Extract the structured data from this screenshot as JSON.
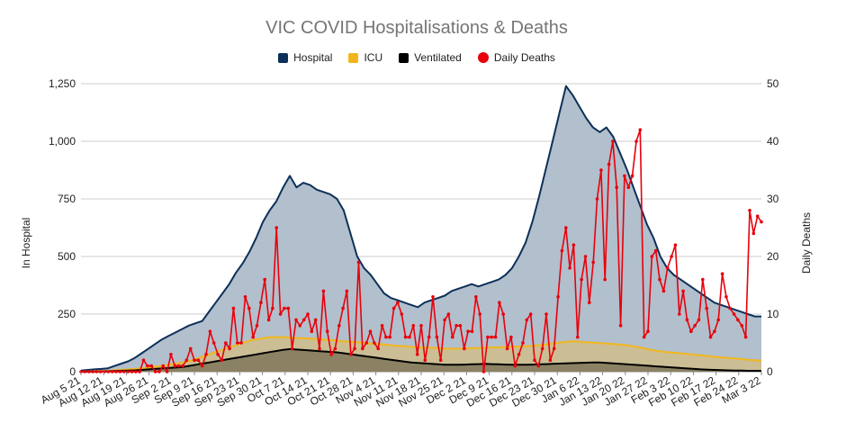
{
  "chart_data": {
    "type": "area",
    "title": "VIC COVID Hospitalisations & Deaths",
    "ylabel_left": "In Hospital",
    "ylabel_right": "Daily Deaths",
    "ylim_left": [
      0,
      1250
    ],
    "ylim_right": [
      0,
      50
    ],
    "yticks_left": [
      "0",
      "250",
      "500",
      "750",
      "1,000",
      "1,250"
    ],
    "yticks_right": [
      "0",
      "10",
      "20",
      "30",
      "40",
      "50"
    ],
    "grid": true,
    "legend_position": "top",
    "x_tick_labels": [
      "Aug 5 21",
      "Aug 12 21",
      "Aug 19 21",
      "Aug 26 21",
      "Sep 2 21",
      "Sep 9 21",
      "Sep 16 21",
      "Sep 23 21",
      "Sep 30 21",
      "Oct 7 21",
      "Oct 14 21",
      "Oct 21 21",
      "Oct 28 21",
      "Nov 4 21",
      "Nov 11 21",
      "Nov 18 21",
      "Nov 25 21",
      "Dec 2 21",
      "Dec 9 21",
      "Dec 16 21",
      "Dec 23 21",
      "Dec 30 21",
      "Jan 6 22",
      "Jan 13 22",
      "Jan 20 22",
      "Jan 27 22",
      "Feb 3 22",
      "Feb 10 22",
      "Feb 17 22",
      "Feb 24 22",
      "Mar 3 22"
    ],
    "series": [
      {
        "name": "Hospital",
        "color": "#0d3059",
        "fill": "#b2bfcc",
        "kind": "area",
        "values": [
          5,
          8,
          10,
          12,
          15,
          25,
          35,
          45,
          60,
          80,
          100,
          120,
          140,
          155,
          170,
          185,
          200,
          210,
          220,
          260,
          300,
          340,
          380,
          430,
          470,
          520,
          580,
          650,
          700,
          740,
          800,
          850,
          800,
          820,
          810,
          790,
          780,
          770,
          750,
          700,
          600,
          500,
          450,
          420,
          380,
          340,
          320,
          310,
          300,
          290,
          280,
          300,
          310,
          320,
          330,
          350,
          360,
          370,
          380,
          370,
          380,
          390,
          400,
          420,
          450,
          500,
          560,
          650,
          760,
          880,
          1000,
          1120,
          1240,
          1200,
          1150,
          1100,
          1060,
          1040,
          1060,
          1020,
          950,
          880,
          800,
          720,
          640,
          580,
          500,
          450,
          420,
          400,
          380,
          360,
          340,
          320,
          300,
          290,
          280,
          270,
          260,
          250,
          240,
          240
        ]
      },
      {
        "name": "ICU",
        "color": "#f2b61c",
        "fill": "#cbbe94",
        "kind": "area",
        "values": [
          0,
          1,
          2,
          3,
          4,
          6,
          8,
          10,
          12,
          15,
          18,
          22,
          25,
          30,
          35,
          40,
          45,
          55,
          65,
          75,
          85,
          95,
          105,
          115,
          125,
          135,
          140,
          145,
          150,
          150,
          150,
          148,
          146,
          145,
          144,
          142,
          140,
          138,
          135,
          132,
          130,
          128,
          125,
          122,
          120,
          118,
          115,
          112,
          110,
          108,
          106,
          105,
          104,
          102,
          100,
          100,
          100,
          101,
          102,
          103,
          104,
          105,
          106,
          107,
          108,
          109,
          110,
          112,
          115,
          118,
          122,
          126,
          130,
          132,
          130,
          128,
          126,
          124,
          122,
          120,
          118,
          115,
          110,
          105,
          98,
          92,
          88,
          85,
          82,
          80,
          77,
          74,
          71,
          68,
          65,
          62,
          60,
          58,
          55,
          52,
          50,
          48
        ]
      },
      {
        "name": "Ventilated",
        "color": "#000000",
        "fill": "#8a8262",
        "kind": "area",
        "values": [
          0,
          0,
          0,
          1,
          2,
          3,
          4,
          5,
          6,
          8,
          10,
          12,
          14,
          16,
          18,
          20,
          25,
          30,
          35,
          40,
          45,
          50,
          55,
          60,
          65,
          70,
          75,
          80,
          85,
          90,
          95,
          98,
          96,
          94,
          92,
          90,
          88,
          86,
          84,
          80,
          76,
          72,
          68,
          64,
          60,
          56,
          52,
          48,
          44,
          40,
          38,
          36,
          34,
          32,
          30,
          30,
          30,
          31,
          32,
          33,
          34,
          33,
          32,
          31,
          30,
          30,
          30,
          31,
          32,
          33,
          34,
          35,
          36,
          37,
          38,
          39,
          40,
          40,
          38,
          36,
          34,
          32,
          30,
          28,
          26,
          24,
          22,
          20,
          18,
          16,
          14,
          12,
          10,
          9,
          8,
          7,
          6,
          5,
          5,
          4,
          4,
          4
        ]
      },
      {
        "name": "Daily Deaths",
        "color": "#e8000b",
        "kind": "line",
        "axis": "right",
        "values": [
          0,
          0,
          0,
          0,
          0,
          0,
          0,
          0,
          0,
          0,
          0,
          0,
          0,
          0,
          0,
          0,
          2,
          1,
          1,
          0,
          0,
          1,
          0,
          3,
          1,
          1,
          1,
          2,
          4,
          2,
          2,
          1,
          3,
          7,
          5,
          3,
          2,
          5,
          4,
          11,
          5,
          5,
          13,
          11,
          6,
          8,
          12,
          16,
          9,
          11,
          25,
          10,
          11,
          11,
          4,
          9,
          8,
          9,
          10,
          7,
          9,
          4,
          14,
          7,
          3,
          4,
          8,
          11,
          14,
          3,
          4,
          19,
          4,
          5,
          7,
          5,
          4,
          8,
          6,
          6,
          11,
          12,
          10,
          6,
          6,
          8,
          3,
          8,
          2,
          6,
          13,
          6,
          2,
          9,
          10,
          6,
          8,
          8,
          4,
          7,
          7,
          13,
          10,
          0,
          6,
          6,
          6,
          12,
          10,
          4,
          6,
          1,
          3,
          5,
          9,
          10,
          2,
          1,
          4,
          10,
          2,
          4,
          13,
          21,
          25,
          18,
          22,
          6,
          16,
          20,
          12,
          19,
          30,
          35,
          16,
          36,
          40,
          32,
          8,
          34,
          32,
          34,
          40,
          42,
          6,
          7,
          20,
          21,
          16,
          14,
          18,
          20,
          22,
          10,
          14,
          9,
          7,
          8,
          9,
          16,
          11,
          6,
          7,
          9,
          17,
          13,
          11,
          10,
          9,
          8,
          6,
          28,
          24,
          27,
          26
        ]
      }
    ]
  }
}
